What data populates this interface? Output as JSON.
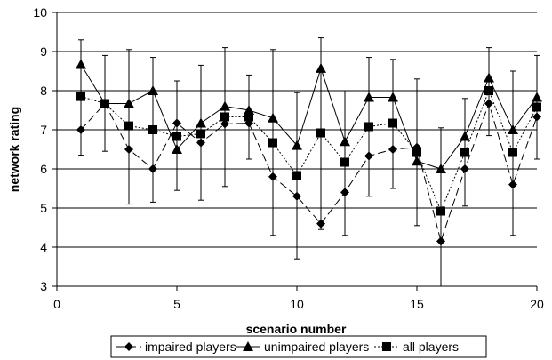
{
  "chart_data": {
    "type": "line",
    "title": "",
    "xlabel": "scenario number",
    "ylabel": "network rating",
    "xlim": [
      0,
      20
    ],
    "ylim": [
      3,
      10
    ],
    "x_ticks": [
      0,
      5,
      10,
      15,
      20
    ],
    "y_ticks": [
      3,
      4,
      5,
      6,
      7,
      8,
      9,
      10
    ],
    "grid": "horizontal",
    "legend_position": "bottom",
    "x": [
      1,
      2,
      3,
      4,
      5,
      6,
      7,
      8,
      9,
      10,
      11,
      12,
      13,
      14,
      15,
      16,
      17,
      18,
      19,
      20
    ],
    "series": [
      {
        "name": "impaired players",
        "marker": "diamond",
        "line_style": "long-dash",
        "values": [
          7.0,
          7.67,
          6.5,
          6.0,
          7.17,
          6.67,
          7.15,
          7.17,
          5.8,
          5.3,
          4.6,
          5.4,
          6.33,
          6.5,
          6.55,
          4.15,
          6.0,
          7.67,
          5.6,
          7.33
        ]
      },
      {
        "name": "unimpaired players",
        "marker": "triangle",
        "line_style": "solid",
        "values": [
          8.67,
          7.67,
          7.67,
          8.0,
          6.5,
          7.17,
          7.6,
          7.5,
          7.3,
          6.6,
          8.57,
          6.7,
          7.83,
          7.83,
          6.2,
          6.0,
          6.83,
          8.33,
          7.0,
          7.83
        ]
      },
      {
        "name": "all players",
        "marker": "square",
        "line_style": "dotted",
        "values": [
          7.85,
          7.67,
          7.1,
          7.0,
          6.83,
          6.9,
          7.33,
          7.33,
          6.67,
          5.83,
          6.92,
          6.17,
          7.08,
          7.17,
          6.42,
          4.92,
          6.42,
          8.0,
          6.42,
          7.58
        ]
      }
    ],
    "error_bars": {
      "applies_to": "all players",
      "low": [
        6.35,
        6.45,
        5.1,
        5.15,
        5.45,
        5.2,
        5.55,
        6.25,
        4.3,
        3.7,
        4.45,
        4.3,
        5.3,
        5.5,
        4.55,
        2.9,
        5.05,
        6.85,
        4.3,
        6.25
      ],
      "high": [
        9.3,
        8.9,
        9.05,
        8.85,
        8.25,
        8.65,
        9.1,
        8.4,
        9.05,
        7.95,
        9.35,
        8.0,
        8.85,
        8.8,
        8.3,
        7.05,
        7.8,
        9.1,
        8.5,
        8.9
      ]
    }
  }
}
